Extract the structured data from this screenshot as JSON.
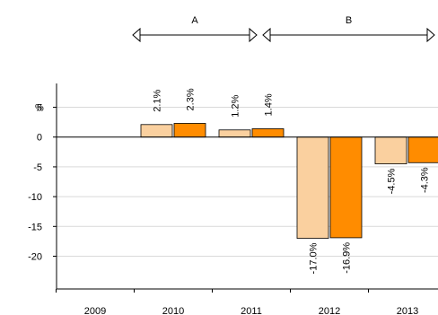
{
  "chart_data": {
    "type": "bar",
    "categories": [
      "2009",
      "2010",
      "2011",
      "2012",
      "2013"
    ],
    "y_unit_label": "%",
    "yticks": [
      -20,
      -15,
      -10,
      -5,
      0,
      5
    ],
    "ylim": [
      -25.5,
      9
    ],
    "grid": true,
    "series": [
      {
        "values": [
          null,
          2.1,
          1.2,
          -17.0,
          -4.5
        ],
        "labels": [
          "",
          "2.1%",
          "1.2%",
          "-17.0%",
          "-4.5%"
        ],
        "color": "#FAD09F"
      },
      {
        "values": [
          null,
          2.3,
          1.4,
          -16.9,
          -4.3
        ],
        "labels": [
          "",
          "2.3%",
          "1.4%",
          "-16.9%",
          "-4.3%"
        ],
        "color": "#FF8C00"
      }
    ],
    "periods": [
      {
        "label": "A",
        "from": "2010",
        "to": "2011"
      },
      {
        "label": "B",
        "from": "2012",
        "to": "2013"
      }
    ]
  }
}
